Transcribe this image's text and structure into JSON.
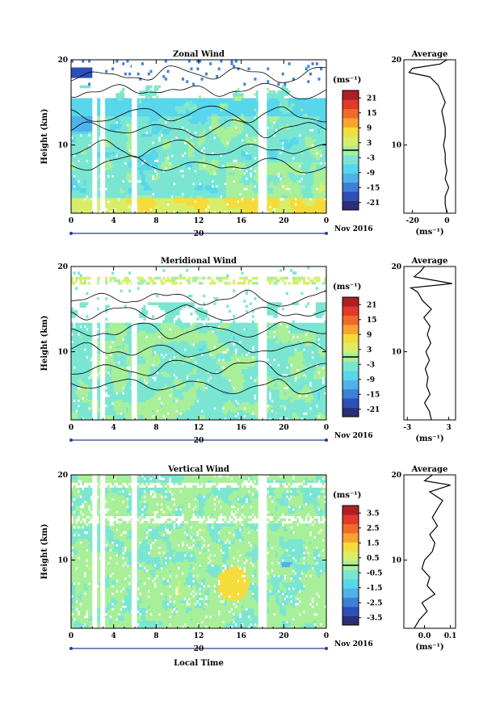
{
  "figure": {
    "date_label": "Nov 2016",
    "day_label": "20",
    "xlabel": "Local Time",
    "ylabel": "Height (km)",
    "unit_label": "(ms⁻¹)",
    "average_title": "Average",
    "colormap": [
      "#2b2f7a",
      "#2d4fb8",
      "#3f7fd8",
      "#4fb3ea",
      "#58d6ec",
      "#7ae6d2",
      "#a8ef9a",
      "#d8ee6a",
      "#f6dc3a",
      "#f8a42e",
      "#f26a2a",
      "#e03a2a",
      "#b01f24"
    ],
    "no_data_color": "#ffffff",
    "grid": false
  },
  "chart_data": [
    {
      "type": "heatmap",
      "title": "Zonal Wind",
      "xlabel": "",
      "ylabel": "Height (km)",
      "x_ticks": [
        "0",
        "4",
        "8",
        "12",
        "16",
        "20",
        "0"
      ],
      "x_range": [
        0,
        24
      ],
      "y_ticks": [
        "10",
        "20"
      ],
      "y_range": [
        2,
        20
      ],
      "colorbar": {
        "label": "(ms⁻¹)",
        "ticks": [
          "21",
          "15",
          "9",
          "3",
          "-3",
          "-9",
          "-15",
          "-21"
        ],
        "range": [
          -24,
          24
        ]
      },
      "profile": {
        "title": "Average",
        "x_ticks": [
          "-20",
          "0"
        ],
        "x_range": [
          -25,
          5
        ],
        "y_range": [
          2,
          20
        ],
        "points": [
          [
            0,
            2
          ],
          [
            -1,
            3
          ],
          [
            -1,
            4
          ],
          [
            1,
            5
          ],
          [
            -1,
            6
          ],
          [
            0,
            7
          ],
          [
            -1,
            8
          ],
          [
            -1,
            9
          ],
          [
            -2,
            10
          ],
          [
            -1,
            11
          ],
          [
            -1,
            12
          ],
          [
            -2,
            13
          ],
          [
            -3,
            14
          ],
          [
            -1,
            15
          ],
          [
            -3,
            16
          ],
          [
            -5,
            17
          ],
          [
            -10,
            18
          ],
          [
            -22,
            18.5
          ],
          [
            -20,
            19
          ],
          [
            -4,
            19.5
          ],
          [
            0,
            20
          ]
        ]
      }
    },
    {
      "type": "heatmap",
      "title": "Meridional Wind",
      "xlabel": "",
      "ylabel": "Height (km)",
      "x_ticks": [
        "0",
        "4",
        "8",
        "12",
        "16",
        "20",
        "0"
      ],
      "x_range": [
        0,
        24
      ],
      "y_ticks": [
        "10",
        "20"
      ],
      "y_range": [
        2,
        20
      ],
      "colorbar": {
        "label": "(ms⁻¹)",
        "ticks": [
          "21",
          "15",
          "9",
          "3",
          "-3",
          "-9",
          "-15",
          "-21"
        ],
        "range": [
          -24,
          24
        ]
      },
      "profile": {
        "title": "Average",
        "x_ticks": [
          "-3",
          "3"
        ],
        "x_range": [
          -3.5,
          4
        ],
        "y_range": [
          2,
          20
        ],
        "points": [
          [
            0.5,
            2
          ],
          [
            0.2,
            3
          ],
          [
            -0.5,
            4
          ],
          [
            0.3,
            5
          ],
          [
            -0.2,
            6
          ],
          [
            0,
            7
          ],
          [
            -0.4,
            8
          ],
          [
            0.2,
            9
          ],
          [
            -0.3,
            10
          ],
          [
            0.4,
            11
          ],
          [
            -0.1,
            12
          ],
          [
            0.3,
            13
          ],
          [
            -0.6,
            14
          ],
          [
            0.5,
            15
          ],
          [
            -0.8,
            16
          ],
          [
            -1.5,
            17
          ],
          [
            -2.5,
            17.5
          ],
          [
            3.5,
            18
          ],
          [
            -2,
            18.8
          ],
          [
            -1,
            19.5
          ],
          [
            -0.5,
            20
          ]
        ]
      }
    },
    {
      "type": "heatmap",
      "title": "Vertical Wind",
      "xlabel": "Local Time",
      "ylabel": "Height (km)",
      "x_ticks": [
        "0",
        "4",
        "8",
        "12",
        "16",
        "20",
        "0"
      ],
      "x_range": [
        0,
        24
      ],
      "y_ticks": [
        "10",
        "20"
      ],
      "y_range": [
        2,
        20
      ],
      "colorbar": {
        "label": "(ms⁻¹)",
        "ticks": [
          "3.5",
          "2.5",
          "1.5",
          "0.5",
          "-0.5",
          "-1.5",
          "-2.5",
          "-3.5"
        ],
        "range": [
          -4,
          4
        ]
      },
      "profile": {
        "title": "Average",
        "x_ticks": [
          "0.0",
          "0.1"
        ],
        "x_range": [
          -0.08,
          0.12
        ],
        "y_range": [
          2,
          20
        ],
        "points": [
          [
            -0.04,
            2
          ],
          [
            -0.02,
            3
          ],
          [
            0.01,
            4
          ],
          [
            -0.01,
            5
          ],
          [
            0.04,
            6
          ],
          [
            0.01,
            7
          ],
          [
            0.02,
            8
          ],
          [
            -0.01,
            9
          ],
          [
            0.0,
            10
          ],
          [
            0.03,
            11
          ],
          [
            0.04,
            12
          ],
          [
            0.02,
            13
          ],
          [
            0.05,
            14
          ],
          [
            0.03,
            15
          ],
          [
            0.05,
            16
          ],
          [
            0.07,
            17
          ],
          [
            0.02,
            18
          ],
          [
            0.1,
            18.8
          ],
          [
            0.0,
            19.3
          ],
          [
            0.03,
            20
          ]
        ]
      }
    }
  ]
}
